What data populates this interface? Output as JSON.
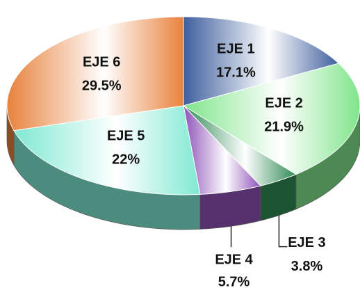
{
  "chart_data": {
    "type": "pie",
    "categories": [
      "EJE 1",
      "EJE 2",
      "EJE 3",
      "EJE 4",
      "EJE 5",
      "EJE 6"
    ],
    "values": [
      17.1,
      21.9,
      3.8,
      5.7,
      22,
      29.5
    ],
    "value_labels": [
      "17.1%",
      "21.9%",
      "3.8%",
      "5.7%",
      "22%",
      "29.5%"
    ],
    "colors": [
      "#3e5f9e",
      "#7fe58a",
      "#2f8a55",
      "#8e52b8",
      "#7fe9d2",
      "#e8823c"
    ]
  }
}
